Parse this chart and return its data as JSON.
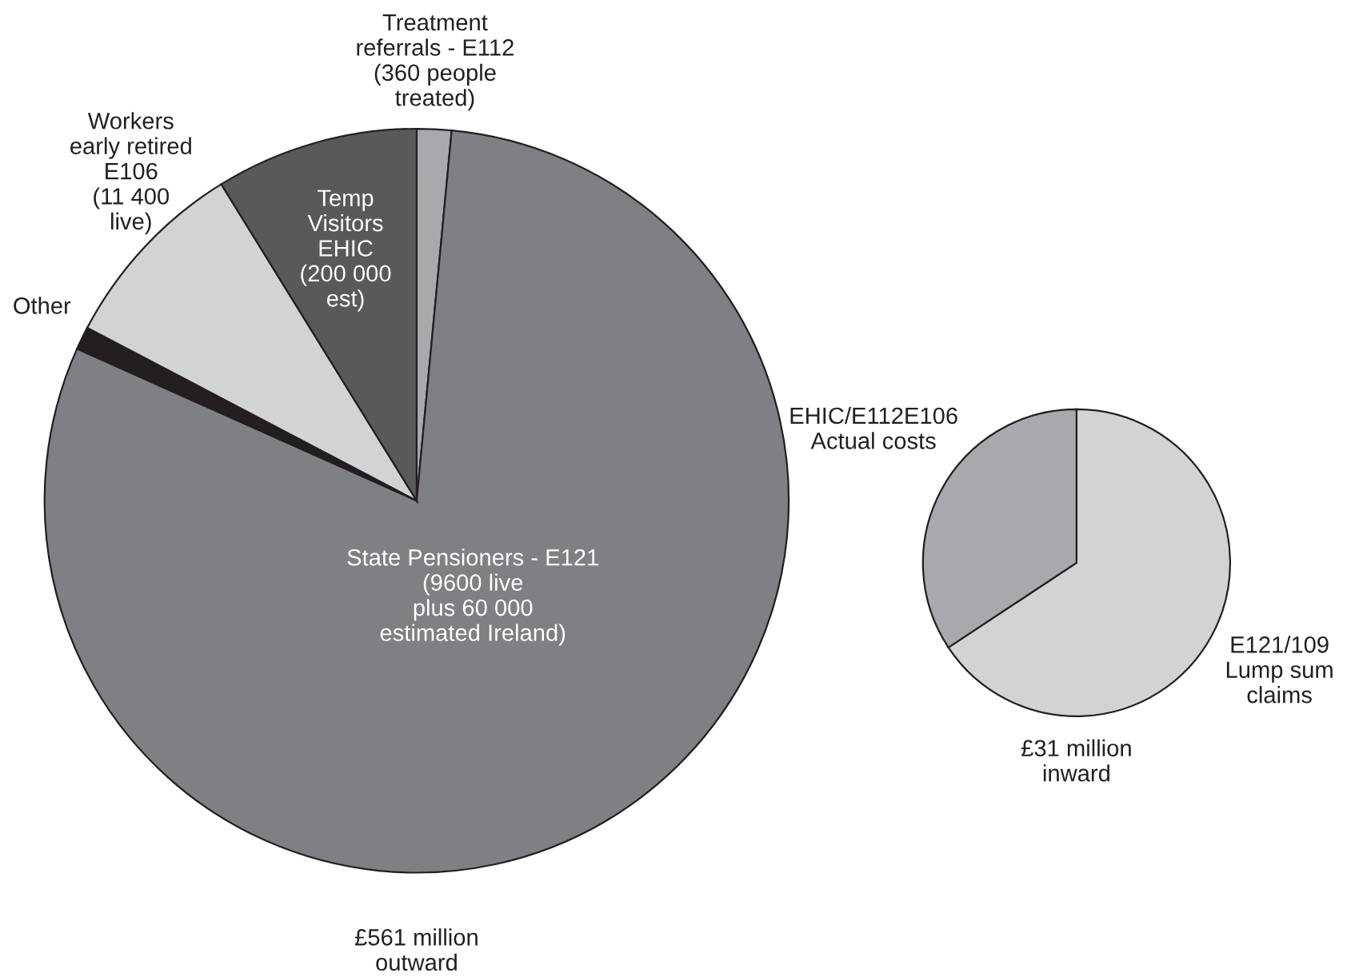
{
  "chart_data": [
    {
      "type": "pie",
      "xlabel": "£561 million\noutward",
      "categories": [
        "Treatment\nreferrals - E112\n(360 people\ntreated)",
        "State Pensioners - E121\n(9600 live\nplus 60 000\nestimated Ireland)",
        "Other",
        "Workers\nearly retired\nE106\n(11 400\nlive)",
        "Temp\nVisitors\nEHIC\n(200 000\nest)"
      ],
      "values": [
        1.5,
        80.2,
        1.0,
        8.5,
        8.8
      ],
      "colors": [
        "#a7a9ac",
        "#7f8083",
        "#231f20",
        "#d2d3d5",
        "#58595b"
      ]
    },
    {
      "type": "pie",
      "xlabel": "£31 million\ninward",
      "categories": [
        "E121/109\nLump sum\nclaims",
        "EHIC/E112E106\nActual costs"
      ],
      "values": [
        65.7,
        34.3
      ],
      "colors": [
        "#d2d3d5",
        "#a7a9ac"
      ]
    }
  ]
}
